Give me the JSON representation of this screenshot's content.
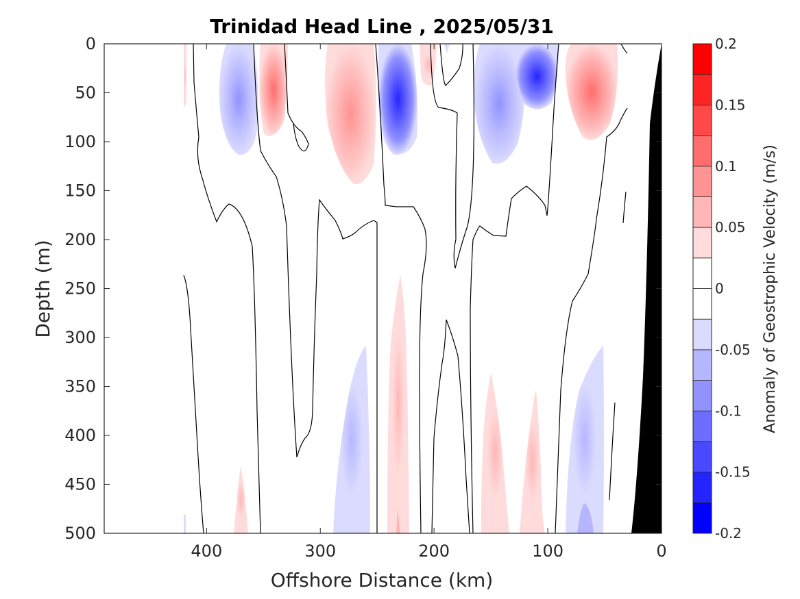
{
  "chart_data": {
    "type": "contour",
    "title": "Trinidad Head Line , 2025/05/31",
    "xlabel": "Offshore Distance (km)",
    "ylabel": "Depth (m)",
    "xlim": [
      490,
      0
    ],
    "ylim": [
      0,
      500
    ],
    "x_reversed": true,
    "y_reversed": true,
    "x_ticks": [
      "400",
      "300",
      "200",
      "100",
      "0"
    ],
    "x_tick_values": [
      400,
      300,
      200,
      100,
      0
    ],
    "y_ticks": [
      "0",
      "50",
      "100",
      "150",
      "200",
      "250",
      "300",
      "350",
      "400",
      "450",
      "500"
    ],
    "y_tick_values": [
      0,
      50,
      100,
      150,
      200,
      250,
      300,
      350,
      400,
      450,
      500
    ],
    "colorbar": {
      "label": "Anomaly of Geostrophic Velocity (m/s)",
      "range": [
        -0.2,
        0.2
      ],
      "levels": [
        -0.2,
        -0.175,
        -0.15,
        -0.125,
        -0.1,
        -0.075,
        -0.05,
        -0.025,
        0,
        0.025,
        0.05,
        0.075,
        0.1,
        0.125,
        0.15,
        0.175,
        0.2
      ],
      "ticks": [
        "0.2",
        "0.15",
        "0.1",
        "0.05",
        "0",
        "-0.05",
        "-0.1",
        "-0.15",
        "-0.2"
      ],
      "tick_values": [
        0.2,
        0.15,
        0.1,
        0.05,
        0,
        -0.05,
        -0.1,
        -0.15,
        -0.2
      ],
      "colors": [
        "#0000ff",
        "#2424ff",
        "#4949ff",
        "#6d6dff",
        "#9292ff",
        "#b6b6ff",
        "#dbdbff",
        "#ffffff",
        "#ffffff",
        "#ffdbdb",
        "#ffb6b6",
        "#ff9292",
        "#ff6d6d",
        "#ff4949",
        "#ff2424",
        "#ff0000"
      ]
    },
    "anomaly_cores": [
      {
        "x": 420,
        "depth_top": 0,
        "depth_bottom": 65,
        "peak_value": 0.03
      },
      {
        "x": 370,
        "depth_top": 0,
        "depth_bottom": 110,
        "peak_value": -0.08
      },
      {
        "x": 340,
        "depth_top": 0,
        "depth_bottom": 100,
        "peak_value": 0.1
      },
      {
        "x": 270,
        "depth_top": 0,
        "depth_bottom": 140,
        "peak_value": 0.07
      },
      {
        "x": 232,
        "depth_top": 0,
        "depth_bottom": 110,
        "peak_value": -0.17
      },
      {
        "x": 210,
        "depth_top": 0,
        "depth_bottom": 40,
        "peak_value": 0.04
      },
      {
        "x": 118,
        "depth_top": 0,
        "depth_bottom": 160,
        "peak_value": -0.15
      },
      {
        "x": 65,
        "depth_top": 0,
        "depth_bottom": 120,
        "peak_value": 0.11
      },
      {
        "x": 270,
        "depth_top": 310,
        "depth_bottom": 500,
        "peak_value": -0.04
      },
      {
        "x": 230,
        "depth_top": 240,
        "depth_bottom": 500,
        "peak_value": 0.05
      },
      {
        "x": 375,
        "depth_top": 430,
        "depth_bottom": 500,
        "peak_value": 0.03
      },
      {
        "x": 150,
        "depth_top": 340,
        "depth_bottom": 500,
        "peak_value": 0.04
      },
      {
        "x": 105,
        "depth_top": 350,
        "depth_bottom": 500,
        "peak_value": 0.03
      },
      {
        "x": 60,
        "depth_top": 310,
        "depth_bottom": 500,
        "peak_value": -0.09
      },
      {
        "x": 420,
        "depth_top": 480,
        "depth_bottom": 500,
        "peak_value": -0.03
      }
    ],
    "bottom_topography": [
      [
        0,
        0
      ],
      [
        10,
        60
      ],
      [
        20,
        180
      ],
      [
        25,
        500
      ]
    ],
    "colors": {
      "bottom": "#000000",
      "contour": "#000000"
    }
  }
}
